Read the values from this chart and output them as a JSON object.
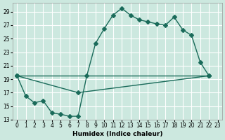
{
  "xlabel": "Humidex (Indice chaleur)",
  "bg_color": "#cce8df",
  "line_color": "#1a6b5a",
  "xlim": [
    -0.5,
    23.5
  ],
  "ylim": [
    13,
    30.3
  ],
  "xticks": [
    0,
    1,
    2,
    3,
    4,
    5,
    6,
    7,
    8,
    9,
    10,
    11,
    12,
    13,
    14,
    15,
    16,
    17,
    18,
    19,
    20,
    21,
    22,
    23
  ],
  "ytick_vals": [
    13,
    15,
    17,
    19,
    21,
    23,
    25,
    27,
    29
  ],
  "series1_x": [
    0,
    1,
    2,
    3,
    4,
    5,
    6,
    7,
    8,
    9,
    10,
    11,
    12,
    13,
    14,
    15,
    16,
    17,
    18,
    19,
    20,
    21,
    22
  ],
  "series1_y": [
    19.5,
    16.5,
    15.5,
    15.8,
    14.0,
    13.8,
    13.5,
    13.5,
    19.5,
    24.3,
    26.5,
    28.5,
    29.5,
    28.5,
    27.8,
    27.5,
    27.2,
    27.0,
    28.2,
    26.3,
    25.5,
    21.5,
    19.5
  ],
  "series2_x": [
    0,
    22
  ],
  "series2_y": [
    19.5,
    19.5
  ],
  "series3_x": [
    0,
    7,
    22
  ],
  "series3_y": [
    19.5,
    17.0,
    19.5
  ]
}
